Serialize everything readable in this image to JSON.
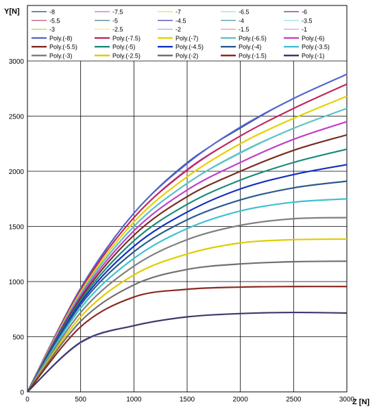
{
  "chart_data": {
    "type": "line",
    "title": "",
    "xlabel": "Z [N]",
    "ylabel": "Y[N]",
    "xlim": [
      0,
      3000
    ],
    "ylim": [
      0,
      3000
    ],
    "xticks": [
      0,
      500,
      1000,
      1500,
      2000,
      2500,
      3000
    ],
    "yticks": [
      0,
      500,
      1000,
      1500,
      2000,
      2500,
      3000
    ],
    "grid": true,
    "legend_position": "top",
    "x": [
      0,
      500,
      1000,
      1500,
      2000,
      2500,
      3000
    ],
    "series": [
      {
        "name": "-8",
        "kind": "data",
        "color": "#1f3f7a",
        "values": [
          0,
          930,
          1620,
          2080,
          2390,
          2660,
          2880
        ]
      },
      {
        "name": "-7.5",
        "kind": "data",
        "color": "#c266d6",
        "values": [
          0,
          920,
          1580,
          2020,
          2320,
          2570,
          2790
        ]
      },
      {
        "name": "-7",
        "kind": "data",
        "color": "#d9e84a",
        "values": [
          0,
          900,
          1540,
          1950,
          2250,
          2480,
          2680
        ]
      },
      {
        "name": "-6.5",
        "kind": "data",
        "color": "#8fe0e6",
        "values": [
          0,
          890,
          1500,
          1890,
          2160,
          2390,
          2570
        ]
      },
      {
        "name": "-6",
        "kind": "data",
        "color": "#6a2a7a",
        "values": [
          0,
          870,
          1460,
          1830,
          2080,
          2290,
          2450
        ]
      },
      {
        "name": "-5.5",
        "kind": "data",
        "color": "#b0405a",
        "values": [
          0,
          850,
          1420,
          1770,
          2000,
          2190,
          2330
        ]
      },
      {
        "name": "-5",
        "kind": "data",
        "color": "#2f6f80",
        "values": [
          0,
          830,
          1370,
          1700,
          1920,
          2080,
          2200
        ]
      },
      {
        "name": "-4.5",
        "kind": "data",
        "color": "#1a2aa6",
        "values": [
          0,
          810,
          1320,
          1630,
          1840,
          1970,
          2060
        ]
      },
      {
        "name": "-4",
        "kind": "data",
        "color": "#2a8a9a",
        "values": [
          0,
          790,
          1270,
          1560,
          1740,
          1850,
          1910
        ]
      },
      {
        "name": "-3.5",
        "kind": "data",
        "color": "#8fd8e8",
        "values": [
          0,
          760,
          1210,
          1480,
          1640,
          1720,
          1750
        ]
      },
      {
        "name": "-3",
        "kind": "data",
        "color": "#a8d84a",
        "values": [
          0,
          720,
          1140,
          1380,
          1510,
          1570,
          1580
        ]
      },
      {
        "name": "-2.5",
        "kind": "data",
        "color": "#f2ea5a",
        "values": [
          0,
          680,
          1060,
          1250,
          1350,
          1380,
          1385
        ]
      },
      {
        "name": "-2",
        "kind": "data",
        "color": "#9ab4e0",
        "values": [
          0,
          640,
          970,
          1110,
          1160,
          1180,
          1185
        ]
      },
      {
        "name": "-1.5",
        "kind": "data",
        "color": "#e58fb0",
        "values": [
          0,
          590,
          860,
          930,
          950,
          955,
          955
        ]
      },
      {
        "name": "-1",
        "kind": "data",
        "color": "#c9a0e8",
        "values": [
          0,
          440,
          600,
          680,
          710,
          720,
          715
        ]
      },
      {
        "name": "Poly.(-8)",
        "kind": "poly",
        "color": "#5566cc",
        "values": [
          0,
          940,
          1620,
          2070,
          2400,
          2660,
          2880
        ]
      },
      {
        "name": "Poly.(-7.5)",
        "kind": "poly",
        "color": "#c0285a",
        "values": [
          0,
          925,
          1580,
          2010,
          2320,
          2570,
          2790
        ]
      },
      {
        "name": "Poly.(-7)",
        "kind": "poly",
        "color": "#e8d000",
        "values": [
          0,
          905,
          1540,
          1950,
          2250,
          2480,
          2680
        ]
      },
      {
        "name": "Poly.(-6.5)",
        "kind": "poly",
        "color": "#5cc0c8",
        "values": [
          0,
          890,
          1500,
          1890,
          2170,
          2390,
          2570
        ]
      },
      {
        "name": "Poly.(-6)",
        "kind": "poly",
        "color": "#c040c8",
        "values": [
          0,
          870,
          1460,
          1830,
          2080,
          2290,
          2450
        ]
      },
      {
        "name": "Poly.(-5.5)",
        "kind": "poly",
        "color": "#7a2a20",
        "values": [
          0,
          850,
          1420,
          1770,
          2000,
          2190,
          2330
        ]
      },
      {
        "name": "Poly.(-5)",
        "kind": "poly",
        "color": "#1a8a7a",
        "values": [
          0,
          830,
          1370,
          1700,
          1920,
          2080,
          2200
        ]
      },
      {
        "name": "Poly.(-4.5)",
        "kind": "poly",
        "color": "#1030c0",
        "values": [
          0,
          810,
          1320,
          1630,
          1840,
          1970,
          2060
        ]
      },
      {
        "name": "Poly.(-4)",
        "kind": "poly",
        "color": "#2a5a90",
        "values": [
          0,
          790,
          1270,
          1560,
          1740,
          1850,
          1910
        ]
      },
      {
        "name": "Poly.(-3.5)",
        "kind": "poly",
        "color": "#40c0d0",
        "values": [
          0,
          760,
          1210,
          1480,
          1640,
          1720,
          1750
        ]
      },
      {
        "name": "Poly.(-3)",
        "kind": "poly",
        "color": "#808080",
        "values": [
          0,
          720,
          1140,
          1380,
          1510,
          1570,
          1580
        ]
      },
      {
        "name": "Poly.(-2.5)",
        "kind": "poly",
        "color": "#e0cc00",
        "values": [
          0,
          680,
          1060,
          1250,
          1350,
          1380,
          1385
        ]
      },
      {
        "name": "Poly.(-2)",
        "kind": "poly",
        "color": "#707070",
        "values": [
          0,
          640,
          970,
          1110,
          1160,
          1180,
          1185
        ]
      },
      {
        "name": "Poly.(-1.5)",
        "kind": "poly",
        "color": "#8a2a20",
        "values": [
          0,
          590,
          860,
          930,
          950,
          955,
          955
        ]
      },
      {
        "name": "Poly.(-1)",
        "kind": "poly",
        "color": "#3a3a6a",
        "values": [
          0,
          450,
          600,
          680,
          710,
          720,
          715
        ]
      }
    ]
  }
}
